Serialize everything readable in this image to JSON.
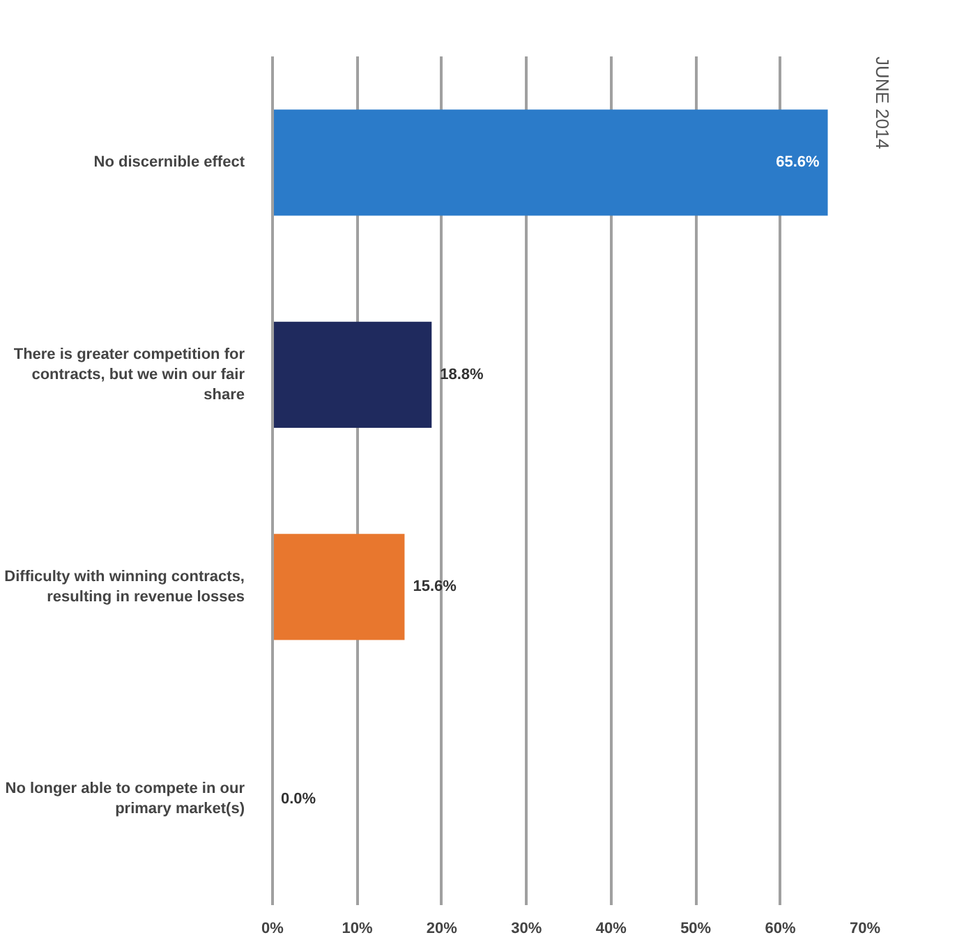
{
  "chart_data": {
    "type": "bar",
    "orientation": "horizontal",
    "categories": [
      "No discernible effect",
      "There is greater competition for contracts, but we win our fair share",
      "Difficulty with winning contracts, resulting in revenue losses",
      "No longer able to compete in our primary market(s)"
    ],
    "values": [
      65.6,
      18.8,
      15.6,
      0.0
    ],
    "value_labels": [
      "65.6%",
      "18.8%",
      "15.6%",
      "0.0%"
    ],
    "colors": [
      "#2b7bc9",
      "#1f2a5e",
      "#e8772e",
      "#8a8a8a"
    ],
    "xlim": [
      0,
      70
    ],
    "xticks": [
      {
        "value": 0,
        "label": "0%"
      },
      {
        "value": 10,
        "label": "10%"
      },
      {
        "value": 20,
        "label": "20%"
      },
      {
        "value": 30,
        "label": "30%"
      },
      {
        "value": 40,
        "label": "40%"
      },
      {
        "value": 50,
        "label": "50%"
      },
      {
        "value": 60,
        "label": "60%"
      },
      {
        "value": 70,
        "label": "70%"
      }
    ],
    "grid": "x",
    "annotations": [
      "JUNE 2014"
    ]
  }
}
